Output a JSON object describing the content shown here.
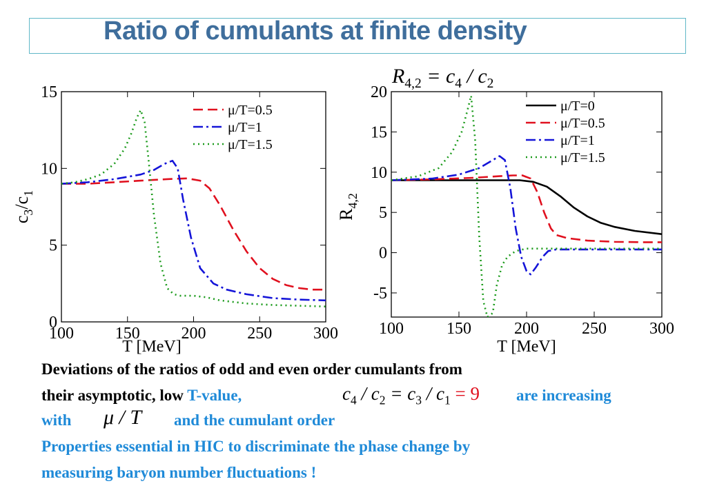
{
  "slide": {
    "title": "Ratio of cumulants at finite density",
    "r42_formula": {
      "lhs": "R",
      "lhs_sub": "4,2",
      "eq": " = c",
      "c4_sub": "4",
      "slash": " / c",
      "c2_sub": "2"
    },
    "text": {
      "line1": "Deviations  of the ratios of odd and even  order cumulants   from",
      "line2_black": "their asymptotic, low ",
      "line2_blue": "T-value,",
      "line2_formula": {
        "a": "c",
        "a_sub": "4",
        "b": " / c",
        "b_sub": "2",
        "c": " = c",
        "c_sub": "3",
        "d": " / c",
        "d_sub": "1",
        "eq9": " = 9"
      },
      "line2_tail": "are increasing",
      "line3_a": "with",
      "line3_formula": "μ / T",
      "line3_b": "and the cumulant order",
      "line4": "Properties essential in  HIC to discriminate the phase change  by",
      "line5": "measuring  baryon number fluctuations !"
    },
    "colors": {
      "title": "#3f6e9c",
      "blue_text": "#1f8ad8",
      "red_text": "#e0101e",
      "frame": "#5fb7c7"
    }
  },
  "chart_data": [
    {
      "type": "line",
      "xlabel": "T [MeV]",
      "ylabel": "c3/c1",
      "xlim": [
        100,
        300
      ],
      "ylim": [
        0,
        15
      ],
      "xticks": [
        "100",
        "150",
        "200",
        "250",
        "300"
      ],
      "yticks": [
        "0",
        "5",
        "10",
        "15"
      ],
      "legend_position": "top-right",
      "series": [
        {
          "name": "μ/T=0.5",
          "color": "#e0101e",
          "dash": "14 7",
          "x": [
            100,
            120,
            140,
            160,
            180,
            195,
            205,
            212,
            220,
            230,
            240,
            250,
            260,
            270,
            280,
            290,
            300
          ],
          "y": [
            9.0,
            9.0,
            9.1,
            9.2,
            9.3,
            9.35,
            9.2,
            8.7,
            7.6,
            6.0,
            4.6,
            3.5,
            2.8,
            2.4,
            2.2,
            2.1,
            2.1
          ]
        },
        {
          "name": "μ/T=1",
          "color": "#1414d8",
          "dash": "14 5 3 5",
          "x": [
            100,
            120,
            140,
            160,
            170,
            178,
            184,
            188,
            192,
            198,
            205,
            215,
            225,
            240,
            260,
            280,
            300
          ],
          "y": [
            9.0,
            9.1,
            9.3,
            9.6,
            9.9,
            10.3,
            10.5,
            10.0,
            8.0,
            5.5,
            3.5,
            2.5,
            2.1,
            1.8,
            1.55,
            1.45,
            1.4
          ]
        },
        {
          "name": "μ/T=1.5",
          "color": "#1a9a1a",
          "dash": "2 5",
          "x": [
            100,
            110,
            120,
            130,
            140,
            148,
            153,
            157,
            160,
            163,
            166,
            170,
            175,
            180,
            185,
            190,
            200,
            210,
            220,
            240,
            260,
            280,
            300
          ],
          "y": [
            9.0,
            9.1,
            9.3,
            9.6,
            10.3,
            11.3,
            12.3,
            13.3,
            13.8,
            13.0,
            10.5,
            7.0,
            3.8,
            2.2,
            1.8,
            1.7,
            1.7,
            1.6,
            1.4,
            1.2,
            1.1,
            1.05,
            1.0
          ]
        }
      ]
    },
    {
      "type": "line",
      "xlabel": "T [MeV]",
      "ylabel": "R4,2",
      "xlim": [
        100,
        300
      ],
      "ylim": [
        -8,
        20
      ],
      "xticks": [
        "100",
        "150",
        "200",
        "250",
        "300"
      ],
      "yticks": [
        "-5",
        "0",
        "5",
        "10",
        "15",
        "20"
      ],
      "legend_position": "top-right",
      "series": [
        {
          "name": "μ/T=0",
          "color": "#000000",
          "dash": "",
          "x": [
            100,
            150,
            180,
            195,
            205,
            215,
            225,
            235,
            245,
            255,
            265,
            280,
            300
          ],
          "y": [
            9.0,
            9.0,
            9.0,
            9.0,
            8.8,
            8.2,
            7.0,
            5.6,
            4.5,
            3.7,
            3.2,
            2.7,
            2.3
          ]
        },
        {
          "name": "μ/T=0.5",
          "color": "#e0101e",
          "dash": "14 7",
          "x": [
            100,
            130,
            160,
            180,
            190,
            197,
            203,
            208,
            213,
            218,
            222,
            230,
            245,
            265,
            285,
            300
          ],
          "y": [
            9.0,
            9.1,
            9.3,
            9.5,
            9.6,
            9.6,
            9.2,
            7.5,
            5.0,
            3.0,
            2.2,
            1.8,
            1.5,
            1.35,
            1.3,
            1.3
          ]
        },
        {
          "name": "μ/T=1",
          "color": "#1414d8",
          "dash": "14 5 3 5",
          "x": [
            100,
            130,
            150,
            165,
            175,
            180,
            184,
            188,
            192,
            196,
            200,
            203,
            207,
            212,
            216,
            222,
            240,
            270,
            300
          ],
          "y": [
            9.0,
            9.2,
            9.7,
            10.5,
            11.5,
            12.0,
            11.5,
            8.0,
            3.0,
            -0.5,
            -2.3,
            -2.7,
            -1.8,
            -0.5,
            0.2,
            0.4,
            0.4,
            0.4,
            0.4
          ]
        },
        {
          "name": "μ/T=1.5",
          "color": "#1a9a1a",
          "dash": "2 5",
          "x": [
            100,
            120,
            135,
            145,
            152,
            156,
            159,
            162,
            165,
            168,
            171,
            175,
            178,
            182,
            186,
            192,
            200,
            215,
            240,
            270,
            300
          ],
          "y": [
            9.0,
            9.5,
            10.5,
            12.5,
            15.0,
            17.5,
            19.5,
            14.0,
            2.0,
            -6.0,
            -8.0,
            -7.5,
            -4.0,
            -1.5,
            -0.5,
            0.2,
            0.5,
            0.5,
            0.5,
            0.5,
            0.5
          ]
        }
      ]
    }
  ]
}
